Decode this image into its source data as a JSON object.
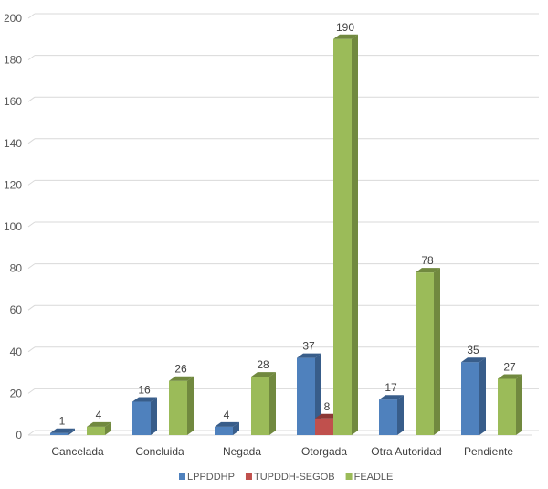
{
  "chart_data": {
    "type": "bar",
    "title": "",
    "xlabel": "",
    "ylabel": "",
    "ylim": [
      0,
      200
    ],
    "yticks": [
      0,
      20,
      40,
      60,
      80,
      100,
      120,
      140,
      160,
      180,
      200
    ],
    "grid": true,
    "legend_position": "bottom",
    "categories": [
      "Cancelada",
      "Concluida",
      "Negada",
      "Otorgada",
      "Otra Autoridad",
      "Pendiente"
    ],
    "series": [
      {
        "name": "LPPDDHP",
        "color": "#4F81BD",
        "side": "#385D8A",
        "values": [
          1,
          16,
          4,
          37,
          17,
          35
        ]
      },
      {
        "name": "TUPDDH-SEGOB",
        "color": "#C0504D",
        "side": "#8C3836",
        "values": [
          null,
          null,
          null,
          8,
          null,
          null
        ]
      },
      {
        "name": "FEADLE",
        "color": "#9BBB59",
        "side": "#71893F",
        "values": [
          4,
          26,
          28,
          190,
          78,
          27
        ]
      }
    ]
  }
}
